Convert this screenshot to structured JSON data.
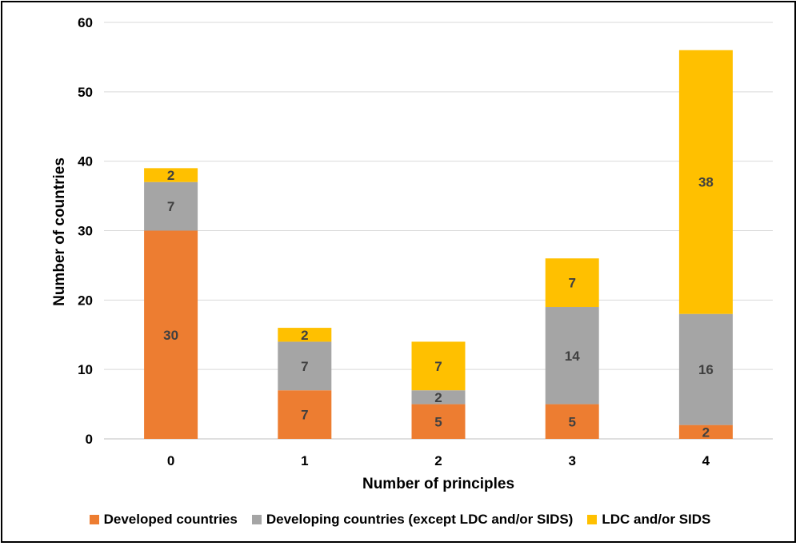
{
  "chart_data": {
    "type": "bar",
    "stacked": true,
    "title": "",
    "xlabel": "Number of principles",
    "ylabel": "Number of countries",
    "categories": [
      "0",
      "1",
      "2",
      "3",
      "4"
    ],
    "ylim": [
      0,
      60
    ],
    "yticks": [
      "0",
      "10",
      "20",
      "30",
      "40",
      "50",
      "60"
    ],
    "grid": true,
    "legend_position": "bottom",
    "series": [
      {
        "name": "Developed countries",
        "color": "#ED7D31",
        "values": [
          30,
          7,
          5,
          5,
          2
        ]
      },
      {
        "name": "Developing countries (except LDC and/or SIDS)",
        "color": "#A5A5A5",
        "values": [
          7,
          7,
          2,
          14,
          16
        ]
      },
      {
        "name": "LDC and/or SIDS",
        "color": "#FFC000",
        "values": [
          2,
          2,
          7,
          7,
          38
        ]
      }
    ]
  }
}
